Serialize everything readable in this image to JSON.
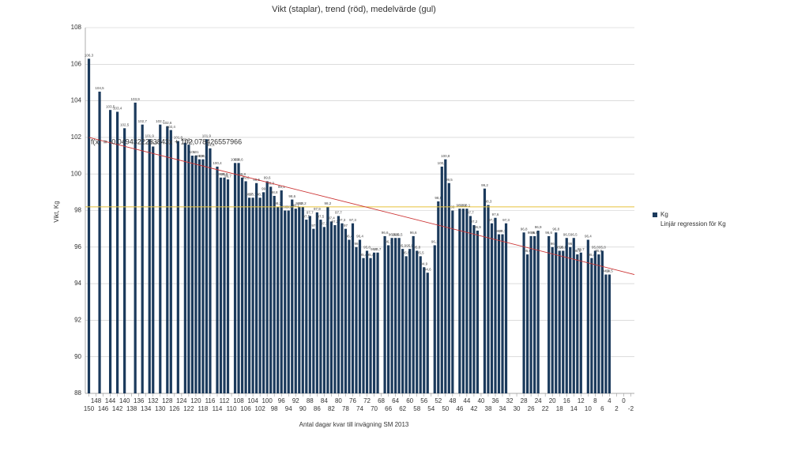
{
  "chart_data": {
    "type": "bar",
    "title": "Vikt (staplar), trend (röd), medelvärde (gul)",
    "x_label": "Antal dagar kvar till invägning SM 2013",
    "y_label": "Vikt, Kg",
    "equation": "f(x) = -0,0494322283843x + 102,078426557966",
    "series": [
      {
        "name": "Kg",
        "color": "#1b3a5c",
        "x": [
          150,
          147,
          144,
          142,
          140,
          137,
          135,
          133,
          132,
          130,
          128,
          127,
          125,
          123,
          122,
          121,
          120,
          119,
          118,
          117,
          116,
          114,
          113,
          112,
          111,
          109,
          108,
          107,
          106,
          105,
          104,
          103,
          102,
          101,
          100,
          99,
          98,
          97,
          96,
          95,
          94,
          93,
          92,
          91,
          90,
          89,
          88,
          87,
          86,
          85,
          84,
          83,
          82,
          81,
          80,
          79,
          78,
          77,
          76,
          75,
          74,
          73,
          72,
          71,
          70,
          69,
          67,
          66,
          65,
          64,
          63,
          62,
          61,
          60,
          59,
          58,
          57,
          56,
          55,
          53,
          52,
          51,
          50,
          49,
          48,
          46,
          45,
          44,
          43,
          42,
          41,
          39,
          38,
          37,
          36,
          35,
          34,
          33,
          28,
          27,
          26,
          25,
          24,
          21,
          20,
          19,
          18,
          17,
          16,
          15,
          14,
          13,
          12,
          10,
          9,
          8,
          7,
          6,
          5,
          4
        ],
        "values": [
          106.3,
          104.5,
          103.5,
          103.4,
          102.5,
          103.9,
          102.7,
          101.9,
          101.5,
          102.7,
          102.6,
          102.4,
          101.8,
          101.7,
          101.6,
          101,
          101,
          100.8,
          100.8,
          101.9,
          101.4,
          100.4,
          99.8,
          99.8,
          99.7,
          100.6,
          100.6,
          99.8,
          99.6,
          98.7,
          98.7,
          99.5,
          98.7,
          99,
          99.6,
          99.3,
          98.8,
          98.2,
          99.1,
          98,
          98,
          98.6,
          98.1,
          98.2,
          98.2,
          97.5,
          97.7,
          97,
          97.9,
          97.5,
          97.1,
          98.2,
          97.4,
          97.2,
          97.7,
          97.3,
          97,
          96.4,
          97.3,
          96,
          96.4,
          95.4,
          95.8,
          95.4,
          95.7,
          95.7,
          96.6,
          96.1,
          96.5,
          96.5,
          96.5,
          95.9,
          95.5,
          95.9,
          96.6,
          95.8,
          95.5,
          94.9,
          94.6,
          96.1,
          98.5,
          100.4,
          100.8,
          99.5,
          98,
          98.1,
          98.1,
          98.1,
          97.7,
          97.2,
          96.9,
          99.2,
          98.3,
          97.3,
          97.6,
          96.7,
          96.7,
          97.3,
          96.8,
          95.6,
          96.6,
          96.6,
          96.9,
          96.6,
          96,
          96.8,
          95.8,
          95.8,
          96.5,
          96,
          96.5,
          95.6,
          95.7,
          96.4,
          95.4,
          95.8,
          95.6,
          95.8,
          94.5,
          94.5
        ],
        "value_labels": [
          "106,3",
          "104,5",
          "103,5",
          "103,4",
          "102,5",
          "103,9",
          "102,7",
          "101,9",
          "101,5",
          "102,7",
          "102,6",
          "102,4",
          "101,8",
          "101,7",
          "101,6",
          "101",
          "101",
          "100,8",
          "100,8",
          "101,9",
          "101,4",
          "100,4",
          "99,8",
          "99,8",
          "99,7",
          "100,6",
          "100,6",
          "99,8",
          "99,6",
          "98,7",
          "98,7",
          "99,5",
          "98,7",
          "99",
          "99,6",
          "99,3",
          "98,8",
          "98,2",
          "99,1",
          "98",
          "98",
          "98,6",
          "98,1",
          "98,2",
          "98,2",
          "97,5",
          "97,7",
          "97",
          "97,9",
          "97,5",
          "97,1",
          "98,2",
          "97,4",
          "97,2",
          "97,7",
          "97,3",
          "97",
          "96,4",
          "97,3",
          "96",
          "96,4",
          "95,4",
          "95,8",
          "95,4",
          "95,7",
          "95,7",
          "96,6",
          "96,1",
          "96,5",
          "96,5",
          "96,5",
          "95,9",
          "95,5",
          "95,9",
          "96,6",
          "95,8",
          "95,5",
          "94,9",
          "94,6",
          "96,1",
          "98,5",
          "100,4",
          "100,8",
          "99,5",
          "98",
          "98,1",
          "98,1",
          "98,1",
          "97,7",
          "97,2",
          "96,9",
          "99,2",
          "98,3",
          "97,3",
          "97,6",
          "96,7",
          "96,7",
          "97,3",
          "96,8",
          "95,6",
          "96,6",
          "96,6",
          "96,9",
          "96,6",
          "96",
          "96,8",
          "95,8",
          "95,8",
          "96,5",
          "96",
          "96,5",
          "95,6",
          "95,7",
          "96,4",
          "95,4",
          "95,8",
          "95,6",
          "95,8",
          "94,5",
          "94,5"
        ]
      },
      {
        "name": "Linjär regression för Kg",
        "color": "#cc3333",
        "x": [
          150,
          -3
        ],
        "values": [
          102.0,
          94.5
        ]
      }
    ],
    "mean": 98.2,
    "mean_color": "#e6c23a",
    "xlim": [
      151,
      -3
    ],
    "xticks": [
      150,
      148,
      146,
      144,
      142,
      140,
      138,
      136,
      134,
      132,
      130,
      128,
      126,
      124,
      122,
      120,
      118,
      116,
      114,
      112,
      110,
      108,
      106,
      104,
      102,
      100,
      98,
      96,
      94,
      92,
      90,
      88,
      86,
      84,
      82,
      80,
      78,
      76,
      74,
      72,
      70,
      68,
      66,
      64,
      62,
      60,
      58,
      56,
      54,
      52,
      50,
      48,
      46,
      44,
      42,
      40,
      38,
      36,
      34,
      32,
      30,
      28,
      26,
      24,
      22,
      20,
      18,
      16,
      14,
      12,
      10,
      8,
      6,
      4,
      2,
      0,
      -2
    ],
    "ylim": [
      88,
      108
    ],
    "yticks": [
      88,
      90,
      92,
      94,
      96,
      98,
      100,
      102,
      104,
      106,
      108
    ],
    "grid": true
  }
}
